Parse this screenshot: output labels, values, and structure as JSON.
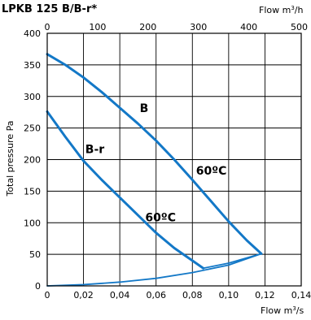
{
  "chart_data": {
    "type": "line",
    "title": "LPKB 125 B/B-r*",
    "ylabel": "Total pressure Pa",
    "xlabel": {
      "prefix": "Flow m",
      "sup": "3",
      "suffix": "/s"
    },
    "x2label": {
      "prefix": "Flow m",
      "sup": "3",
      "suffix": "/h"
    },
    "xlim": [
      0,
      0.14
    ],
    "ylim": [
      0,
      400
    ],
    "x2lim": [
      0,
      504
    ],
    "xticks": [
      "0",
      "0,02",
      "0,04",
      "0,06",
      "0,08",
      "0,10",
      "0,12",
      "0,14"
    ],
    "xtick_values": [
      0,
      0.02,
      0.04,
      0.06,
      0.08,
      0.1,
      0.12,
      0.14
    ],
    "yticks": [
      "0",
      "50",
      "100",
      "150",
      "200",
      "250",
      "300",
      "350",
      "400"
    ],
    "ytick_values": [
      0,
      50,
      100,
      150,
      200,
      250,
      300,
      350,
      400
    ],
    "x2ticks": [
      "0",
      "100",
      "200",
      "300",
      "400",
      "500"
    ],
    "x2tick_values": [
      0,
      100,
      200,
      300,
      400,
      500
    ],
    "grid": true,
    "series": [
      {
        "name": "B",
        "color": "#1378c7",
        "points": [
          [
            0,
            367
          ],
          [
            0.01,
            350
          ],
          [
            0.02,
            330
          ],
          [
            0.03,
            307
          ],
          [
            0.04,
            282
          ],
          [
            0.05,
            257
          ],
          [
            0.06,
            230
          ],
          [
            0.07,
            200
          ],
          [
            0.08,
            168
          ],
          [
            0.09,
            135
          ],
          [
            0.1,
            102
          ],
          [
            0.11,
            72
          ],
          [
            0.118,
            51
          ]
        ]
      },
      {
        "name": "B-r",
        "color": "#1378c7",
        "points": [
          [
            0,
            276
          ],
          [
            0.01,
            236
          ],
          [
            0.02,
            198
          ],
          [
            0.03,
            168
          ],
          [
            0.04,
            140
          ],
          [
            0.05,
            112
          ],
          [
            0.06,
            84
          ],
          [
            0.07,
            60
          ],
          [
            0.08,
            40
          ],
          [
            0.086,
            28
          ]
        ]
      },
      {
        "name": "",
        "color": "#1378c7",
        "points": [
          [
            0,
            0
          ],
          [
            0.02,
            2
          ],
          [
            0.04,
            6
          ],
          [
            0.06,
            12
          ],
          [
            0.08,
            21
          ],
          [
            0.1,
            33
          ],
          [
            0.118,
            51
          ]
        ]
      },
      {
        "name": "",
        "color": "#1378c7",
        "points": [
          [
            0.086,
            28
          ],
          [
            0.1,
            36
          ],
          [
            0.118,
            51
          ]
        ]
      }
    ],
    "annotations": [
      {
        "text": "B",
        "x": 0.051,
        "y": 275
      },
      {
        "text": "B-r",
        "x": 0.021,
        "y": 210
      },
      {
        "text": "60ºC",
        "x": 0.082,
        "y": 176
      },
      {
        "text": "60ºC",
        "x": 0.054,
        "y": 102
      }
    ]
  }
}
